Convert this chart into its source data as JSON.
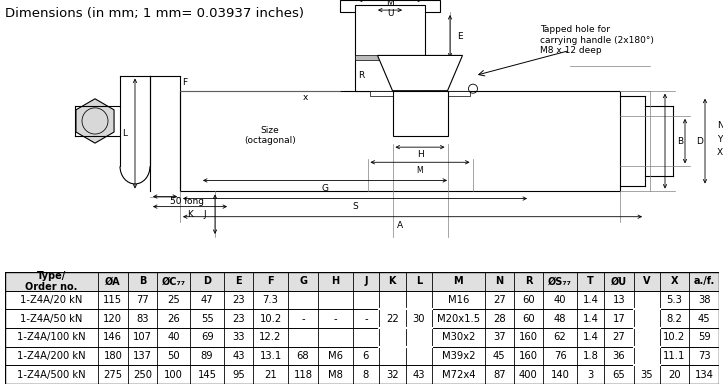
{
  "title": "Dimensions (in mm; 1 mm= 0.03937 inches)",
  "tapped_hole_note": "Tapped hole for\ncarrying handle (2x180°)\nM8 x 12 deep",
  "headers": [
    "Type/\nOrder no.",
    "ØA",
    "B",
    "ØC₇₇",
    "D",
    "E",
    "F",
    "G",
    "H",
    "J",
    "K",
    "L",
    "M",
    "N",
    "R",
    "ØS₇₇",
    "T",
    "ØU",
    "V",
    "X",
    "a./f."
  ],
  "col_widths": [
    1.75,
    0.58,
    0.55,
    0.62,
    0.65,
    0.55,
    0.65,
    0.58,
    0.65,
    0.5,
    0.5,
    0.5,
    1.0,
    0.55,
    0.55,
    0.65,
    0.5,
    0.58,
    0.48,
    0.55,
    0.58
  ],
  "rows": [
    [
      "1-Z4A/20 kN",
      "115",
      "77",
      "25",
      "47",
      "23",
      "7.3",
      "",
      "",
      "",
      "",
      "",
      "M16",
      "27",
      "60",
      "40",
      "1.4",
      "13",
      "",
      "5.3",
      "38"
    ],
    [
      "1-Z4A/50 kN",
      "120",
      "83",
      "26",
      "55",
      "23",
      "10.2",
      "-",
      "-",
      "-",
      "22",
      "30",
      "M20x1.5",
      "28",
      "60",
      "48",
      "1.4",
      "17",
      "",
      "8.2",
      "45"
    ],
    [
      "1-Z4A/100 kN",
      "146",
      "107",
      "40",
      "69",
      "33",
      "12.2",
      "",
      "",
      "",
      "",
      "",
      "M30x2",
      "37",
      "160",
      "62",
      "1.4",
      "27",
      "",
      "10.2",
      "59"
    ],
    [
      "1-Z4A/200 kN",
      "180",
      "137",
      "50",
      "89",
      "43",
      "13.1",
      "68",
      "M6",
      "6",
      "",
      "",
      "M39x2",
      "45",
      "160",
      "76",
      "1.8",
      "36",
      "",
      "11.1",
      "73"
    ],
    [
      "1-Z4A/500 kN",
      "275",
      "250",
      "100",
      "145",
      "95",
      "21",
      "118",
      "M8",
      "8",
      "32",
      "43",
      "M72x4",
      "87",
      "400",
      "140",
      "3",
      "65",
      "35",
      "20",
      "134"
    ]
  ],
  "bg_color": "#ffffff",
  "lc": "#000000",
  "gray": "#808080",
  "font_size_title": 9.5,
  "font_size_table_hdr": 7.0,
  "font_size_table": 7.2,
  "font_size_draw": 6.5
}
